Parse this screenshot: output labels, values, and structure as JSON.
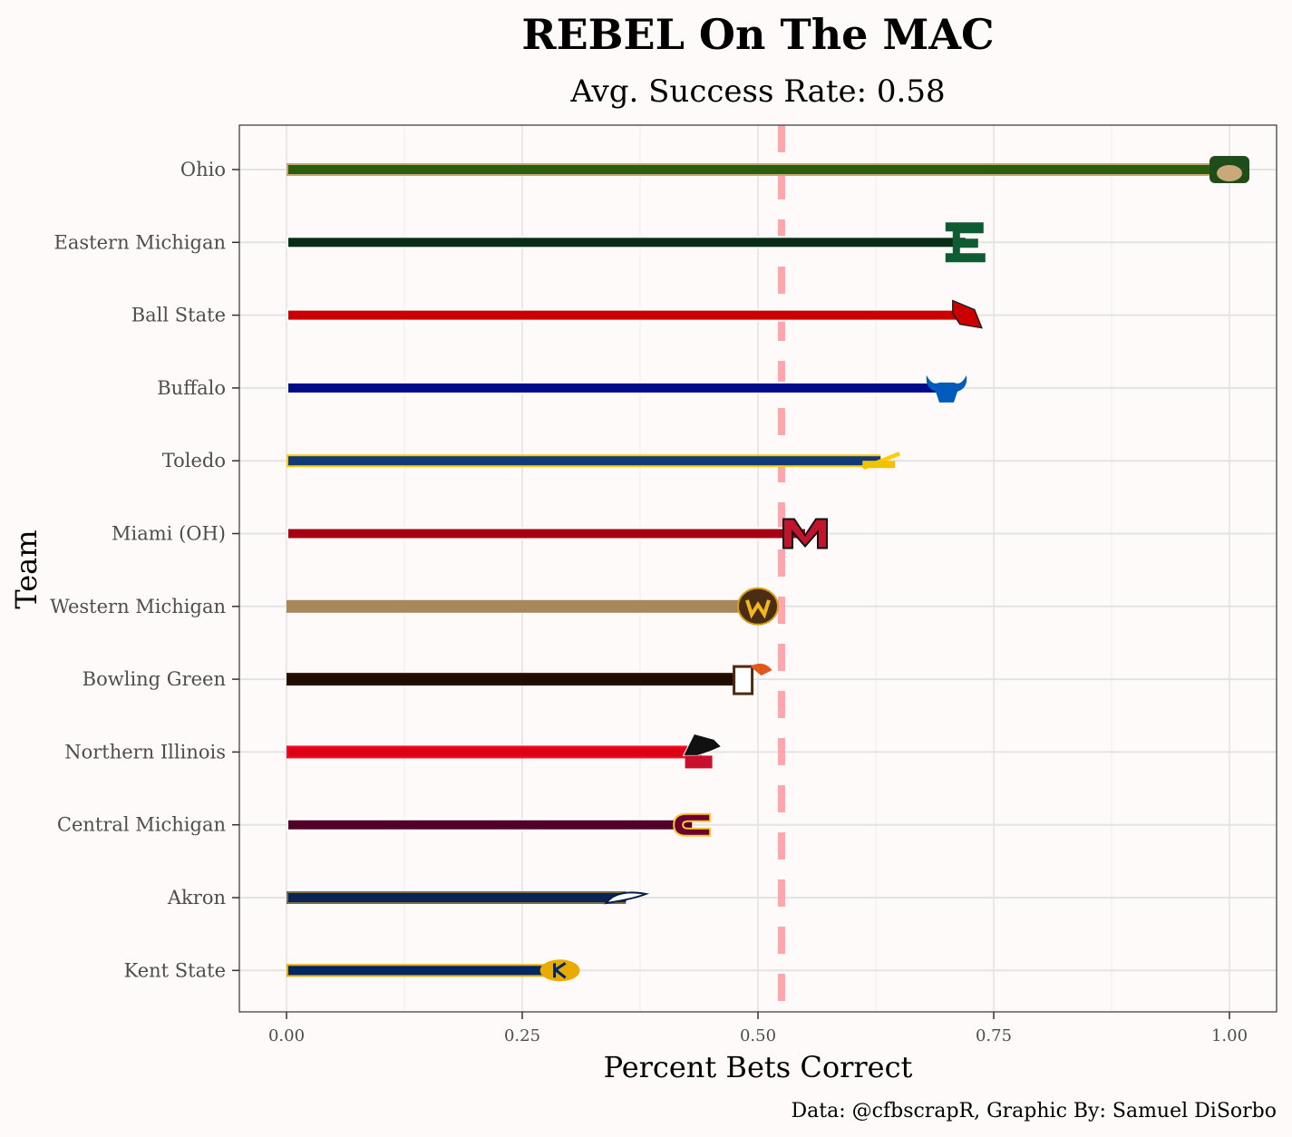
{
  "chart_data": {
    "type": "bar",
    "orientation": "horizontal",
    "title": "REBEL On The MAC",
    "subtitle": "Avg. Success Rate: 0.58",
    "xlabel": "Percent Bets Correct",
    "ylabel": "Team",
    "caption": "Data: @cfbscrapR, Graphic By: Samuel DiSorbo",
    "xlim": [
      -0.05,
      1.05
    ],
    "x_ticks": [
      0.0,
      0.25,
      0.5,
      0.75,
      1.0
    ],
    "x_tick_labels": [
      "0.00",
      "0.25",
      "0.50",
      "0.75",
      "1.00"
    ],
    "reference_line": {
      "x": 0.525,
      "style": "dashed",
      "color": "#ff9fa3"
    },
    "grid": true,
    "categories": [
      "Ohio",
      "Eastern Michigan",
      "Ball State",
      "Buffalo",
      "Toledo",
      "Miami (OH)",
      "Western Michigan",
      "Bowling Green",
      "Northern Illinois",
      "Central Michigan",
      "Akron",
      "Kent State"
    ],
    "values": [
      1.0,
      0.72,
      0.72,
      0.7,
      0.63,
      0.55,
      0.5,
      0.49,
      0.44,
      0.43,
      0.36,
      0.29
    ],
    "bar_colors": [
      {
        "fill": "#295e11",
        "outline": "#c9a66b"
      },
      {
        "fill": "#0a2e14",
        "outline": "#ffffff"
      },
      {
        "fill": "#cc0000",
        "outline": "#ffffff"
      },
      {
        "fill": "#000b8c",
        "outline": "#ffffff"
      },
      {
        "fill": "#123a7a",
        "outline": "#ffcc00"
      },
      {
        "fill": "#a50014",
        "outline": "#ffffff"
      },
      {
        "fill": "#a8875a",
        "outline": "#a8875a"
      },
      {
        "fill": "#1f0d00",
        "outline": "#2a1500"
      },
      {
        "fill": "#e00016",
        "outline": "#f5102a"
      },
      {
        "fill": "#510028",
        "outline": "#ffffff"
      },
      {
        "fill": "#0a2350",
        "outline": "#7a6a50"
      },
      {
        "fill": "#002664",
        "outline": "#eaab00"
      }
    ],
    "logos": [
      "ohio-logo",
      "eastern-michigan-logo",
      "ball-state-logo",
      "buffalo-logo",
      "toledo-logo",
      "miami-oh-logo",
      "western-michigan-logo",
      "bowling-green-logo",
      "northern-illinois-logo",
      "central-michigan-logo",
      "akron-logo",
      "kent-state-logo"
    ]
  }
}
